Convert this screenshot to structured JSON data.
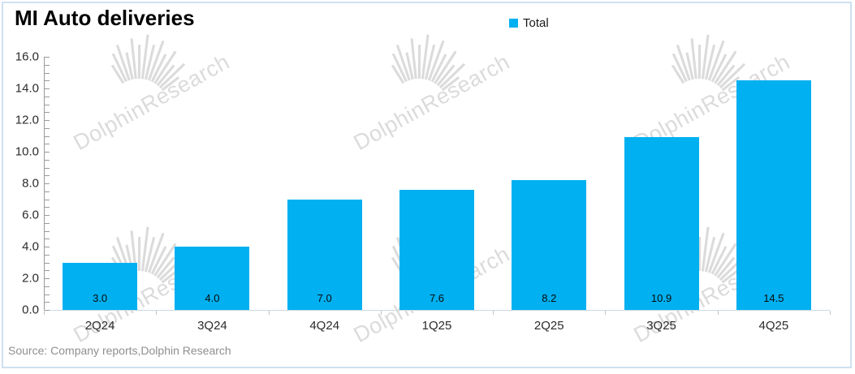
{
  "title": "MI Auto deliveries",
  "legend": {
    "label": "Total",
    "color": "#00B0F0"
  },
  "source": "Source: Company reports,Dolphin Research",
  "watermark": {
    "text": "DolphinResearch"
  },
  "chart_data": {
    "type": "bar",
    "title": "MI Auto deliveries",
    "categories": [
      "2Q24",
      "3Q24",
      "4Q24",
      "1Q25",
      "2Q25",
      "3Q25",
      "4Q25"
    ],
    "series": [
      {
        "name": "Total",
        "values": [
          3.0,
          4.0,
          7.0,
          7.6,
          8.2,
          10.9,
          14.5
        ]
      }
    ],
    "data_labels": [
      "3.0",
      "4.0",
      "7.0",
      "7.6",
      "8.2",
      "10.9",
      "14.5"
    ],
    "xlabel": "",
    "ylabel": "",
    "ylim": [
      0,
      16
    ],
    "ytick_step": 2,
    "ytick_minor_step": 0.5,
    "ytick_labels": [
      "0.0",
      "2.0",
      "4.0",
      "6.0",
      "8.0",
      "10.0",
      "12.0",
      "14.0",
      "16.0"
    ],
    "grid": false,
    "legend_position": "top-center",
    "bar_color": "#00B0F0",
    "value_label_position": "inside-base"
  }
}
